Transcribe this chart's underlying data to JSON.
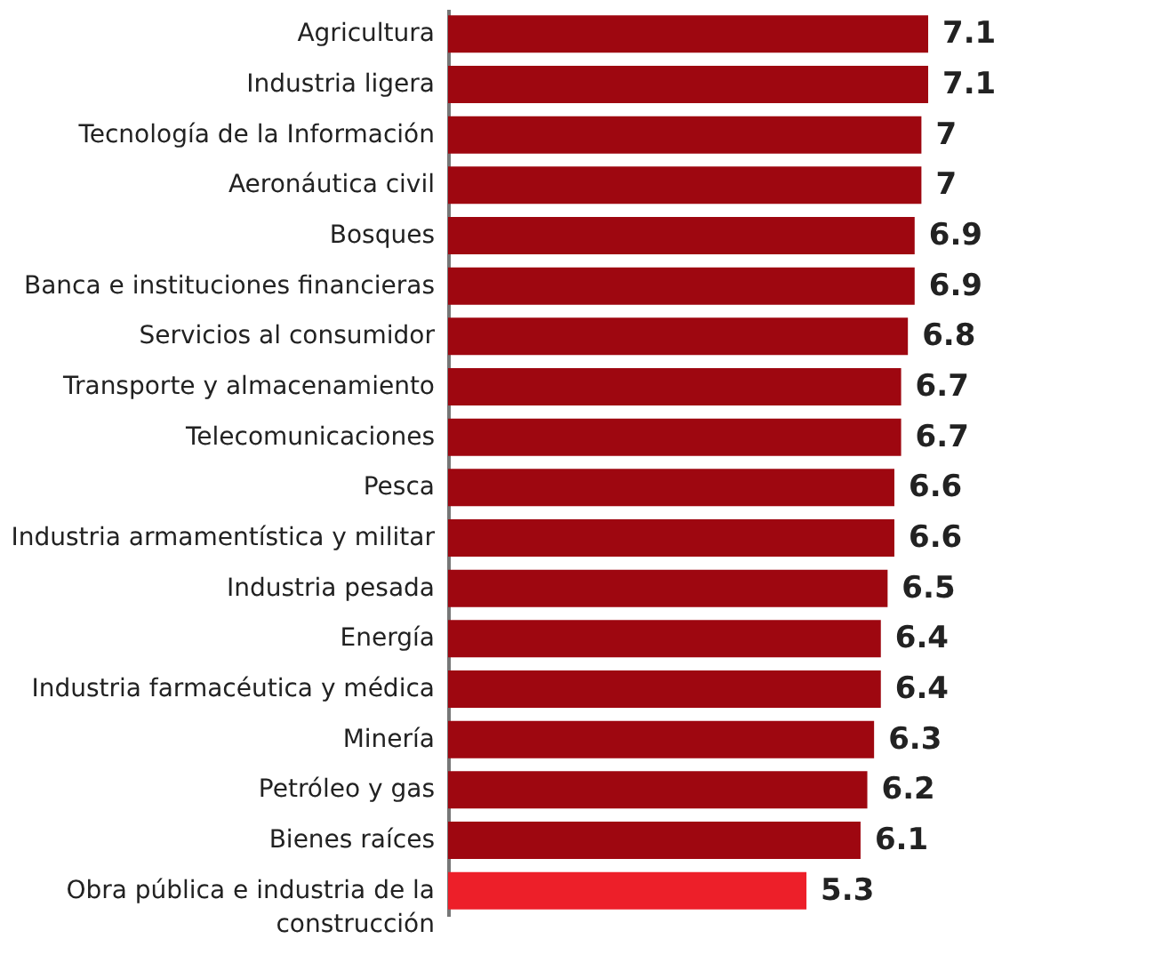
{
  "chart_data": {
    "type": "bar",
    "orientation": "horizontal",
    "data_labels": true,
    "categories": [
      "Agricultura",
      "Industria ligera",
      "Tecnología de la Información",
      "Aeronáutica civil",
      "Bosques",
      "Banca e instituciones financieras",
      "Servicios al consumidor",
      "Transporte y almacenamiento",
      "Telecomunicaciones",
      "Pesca",
      "Industria armamentística y militar",
      "Industria pesada",
      "Energía",
      "Industria farmacéutica y médica",
      "Minería",
      "Petróleo y gas",
      "Bienes raíces",
      "Obra pública e industria de la construcción"
    ],
    "values": [
      7.1,
      7.1,
      7,
      7,
      6.9,
      6.9,
      6.8,
      6.7,
      6.7,
      6.6,
      6.6,
      6.5,
      6.4,
      6.4,
      6.3,
      6.2,
      6.1,
      5.3
    ],
    "colors": [
      "#9e0710",
      "#9e0710",
      "#9e0710",
      "#9e0710",
      "#9e0710",
      "#9e0710",
      "#9e0710",
      "#9e0710",
      "#9e0710",
      "#9e0710",
      "#9e0710",
      "#9e0710",
      "#9e0710",
      "#9e0710",
      "#9e0710",
      "#9e0710",
      "#9e0710",
      "#ed1f29"
    ],
    "xlim": [
      0,
      7.1
    ]
  }
}
